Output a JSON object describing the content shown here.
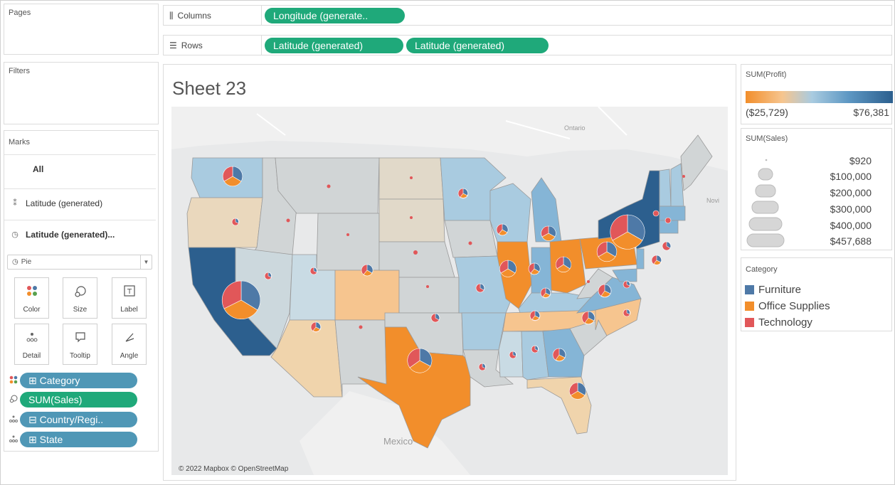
{
  "left_pane": {
    "pages_title": "Pages",
    "filters_title": "Filters",
    "marks_title": "Marks",
    "marks_all": "All",
    "marks_layer1": "Latitude (generated)",
    "marks_layer2": "Latitude (generated)...",
    "mark_type": "Pie",
    "mark_buttons": {
      "color": "Color",
      "size": "Size",
      "label": "Label",
      "detail": "Detail",
      "tooltip": "Tooltip",
      "angle": "Angle"
    },
    "mark_pills": {
      "category": "⊞ Category",
      "sales": "SUM(Sales)",
      "country": "⊟ Country/Regi..",
      "state": "⊞ State"
    }
  },
  "shelves": {
    "columns_label": "Columns",
    "rows_label": "Rows",
    "columns_pill": "Longitude (generate..",
    "rows_pill1": "Latitude (generated)",
    "rows_pill2": "Latitude (generated)"
  },
  "view": {
    "sheet_title": "Sheet 23",
    "map_labels": {
      "ontario": "Ontario",
      "mexico": "Mexico",
      "nova": "Novi"
    },
    "attribution": "© 2022 Mapbox © OpenStreetMap"
  },
  "legend_profit": {
    "title": "SUM(Profit)",
    "min_label": "($25,729)",
    "max_label": "$76,381",
    "colors": [
      "#f28e2b",
      "#f6c58f",
      "#a9cbe0",
      "#2c5f8e"
    ]
  },
  "legend_sales": {
    "title": "SUM(Sales)",
    "items": [
      "$920",
      "$100,000",
      "$200,000",
      "$300,000",
      "$400,000",
      "$457,688"
    ]
  },
  "legend_category": {
    "title": "Category",
    "items": [
      {
        "name": "Furniture",
        "color": "#4e79a7"
      },
      {
        "name": "Office Supplies",
        "color": "#f28e2b"
      },
      {
        "name": "Technology",
        "color": "#e15759"
      }
    ]
  }
}
